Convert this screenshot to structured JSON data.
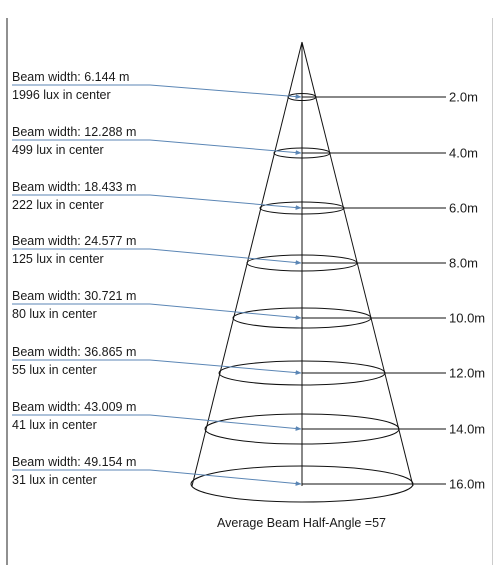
{
  "caption": "Average Beam Half-Angle =57",
  "colors": {
    "leader": "#5b86b5",
    "line": "#111111",
    "frame": "#222222"
  },
  "levels": [
    {
      "distance": "2.0m",
      "beam_width": "Beam width: 6.144 m",
      "lux": "1996 lux in center"
    },
    {
      "distance": "4.0m",
      "beam_width": "Beam width: 12.288 m",
      "lux": "499 lux in center"
    },
    {
      "distance": "6.0m",
      "beam_width": "Beam width: 18.433 m",
      "lux": "222 lux in center"
    },
    {
      "distance": "8.0m",
      "beam_width": "Beam width: 24.577 m",
      "lux": "125 lux in center"
    },
    {
      "distance": "10.0m",
      "beam_width": "Beam width: 30.721 m",
      "lux": "80 lux in center"
    },
    {
      "distance": "12.0m",
      "beam_width": "Beam width: 36.865 m",
      "lux": "55 lux in center"
    },
    {
      "distance": "14.0m",
      "beam_width": "Beam width: 43.009 m",
      "lux": "41 lux in center"
    },
    {
      "distance": "16.0m",
      "beam_width": "Beam width: 49.154 m",
      "lux": "31 lux in center"
    }
  ]
}
